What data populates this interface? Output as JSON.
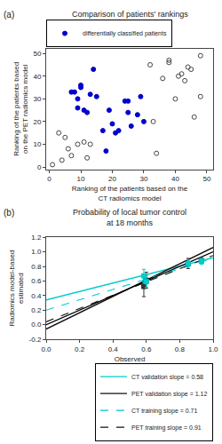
{
  "chart_data": [
    {
      "type": "scatter",
      "title": "Comparison of patients' rankings",
      "x_label": "Ranking of the patients based on the CT radiomics model",
      "y_label": "Ranking of the patients based on the PET radiomics model",
      "annotations": [
        "(a)"
      ],
      "series": [
        {
          "color": "#444444",
          "marker": "circle-open",
          "x": [
            1,
            3,
            4,
            5,
            6,
            7,
            9,
            11,
            12,
            13,
            32,
            33,
            34,
            36,
            38,
            38,
            40,
            41,
            42,
            43,
            44,
            45,
            46,
            48,
            48
          ],
          "values": [
            1,
            15,
            3,
            13,
            8,
            5,
            10,
            11,
            4,
            10,
            45,
            20,
            6,
            39,
            47,
            46,
            30,
            40,
            41,
            38,
            44,
            43,
            22,
            49,
            31
          ]
        },
        {
          "name": "differentially classified patients",
          "color": "#0000cc",
          "marker": "circle",
          "x": [
            7,
            8,
            9,
            9,
            10,
            10,
            11,
            12,
            13,
            14,
            15,
            17,
            18,
            19,
            20,
            21,
            22,
            24,
            25,
            25,
            26,
            28,
            29,
            30
          ],
          "values": [
            33,
            33,
            30,
            26,
            35,
            36,
            25,
            24,
            32,
            43,
            31,
            16,
            7,
            25,
            19,
            15,
            16,
            29,
            29,
            24,
            18,
            23,
            31,
            20
          ]
        }
      ],
      "xlim": [
        -1,
        52
      ],
      "ylim": [
        -1,
        52
      ],
      "xticks": [
        0,
        10,
        20,
        30,
        40,
        50
      ],
      "yticks": [
        0,
        10,
        20,
        30,
        40,
        50
      ],
      "grid": false,
      "legend": "upper left"
    },
    {
      "type": "line",
      "title": "Probability of local tumor control at 18 months",
      "x_label": "Observed",
      "y_label": "Radiomics model-based estimated",
      "annotations": [
        "(b)"
      ],
      "series": [
        {
          "name": "CT validation slope = 0.58",
          "color": "#00cccc",
          "line_style": "solid",
          "x": [
            0,
            1
          ],
          "values": [
            0.34,
            0.92
          ]
        },
        {
          "name": "PET validation slope = 1.12",
          "color": "#111111",
          "line_style": "solid",
          "x": [
            0,
            1
          ],
          "values": [
            -0.06,
            1.06
          ]
        },
        {
          "name": "CT training slope = 0.71",
          "color": "#00cccc",
          "line_style": "dashed",
          "x": [
            0,
            1
          ],
          "values": [
            0.2,
            0.91
          ]
        },
        {
          "name": "PET training slope = 0.91",
          "color": "#111111",
          "line_style": "dashed",
          "x": [
            0,
            1
          ],
          "values": [
            0.04,
            0.95
          ]
        },
        {
          "color": "#000000",
          "line_style": "solid",
          "x": [
            0,
            1
          ],
          "values": [
            0,
            1
          ]
        },
        {
          "type": "scatter",
          "color": "#333333",
          "marker": "square",
          "x": [
            0.585,
            0.6,
            0.85,
            0.93
          ],
          "values": [
            0.525,
            0.61,
            0.84,
            0.88
          ],
          "yerr": [
            0.14,
            0.11,
            0.07,
            0.04
          ]
        },
        {
          "type": "scatter",
          "color": "#00cccc",
          "marker": "square",
          "x": [
            0.585,
            0.6,
            0.85,
            0.93
          ],
          "values": [
            0.67,
            0.59,
            0.84,
            0.87
          ],
          "yerr": [
            0.09,
            0.08,
            0.05,
            0.04
          ]
        }
      ],
      "xlim": [
        0,
        1
      ],
      "ylim": [
        -0.2,
        1.2
      ],
      "xticks": [
        {
          "value": 0,
          "label": "0.0"
        },
        0.2,
        0.4,
        0.6,
        0.8,
        {
          "value": 1,
          "label": "1.0"
        }
      ],
      "yticks": [
        -0.2,
        {
          "value": 0,
          "label": "0.0"
        },
        0.2,
        0.4,
        0.6,
        0.8,
        {
          "value": 1,
          "label": "1.0"
        },
        1.2
      ],
      "grid": false,
      "legend": "lower right"
    }
  ]
}
